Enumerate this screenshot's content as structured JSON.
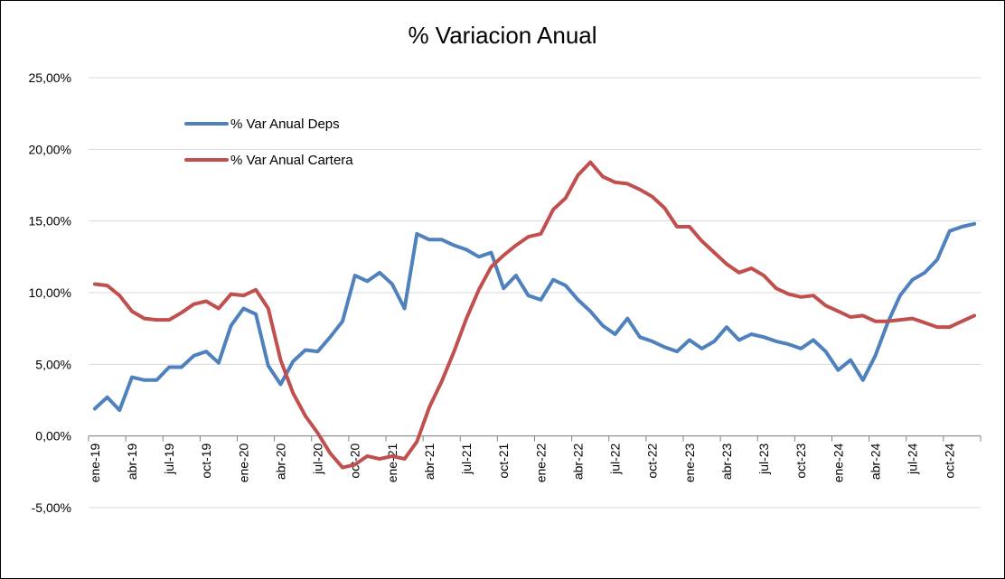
{
  "chart_data": {
    "type": "line",
    "title": "% Variacion Anual",
    "xlabel": "",
    "ylabel": "",
    "ylim": [
      -5,
      25
    ],
    "y_ticks": [
      "25,00%",
      "20,00%",
      "15,00%",
      "10,00%",
      "5,00%",
      "0,00%",
      "-5,00%"
    ],
    "y_tick_values": [
      25,
      20,
      15,
      10,
      5,
      0,
      -5
    ],
    "grid": "horizontal",
    "legend_position": "top-left",
    "x_labels": [
      "ene-19",
      "abr-19",
      "jul-19",
      "oct-19",
      "ene-20",
      "abr-20",
      "jul-20",
      "oct-20",
      "ene-21",
      "abr-21",
      "jul-21",
      "oct-21",
      "ene-22",
      "abr-22",
      "jul-22",
      "oct-22",
      "ene-23",
      "abr-23",
      "jul-23",
      "oct-23",
      "ene-24",
      "abr-24",
      "jul-24",
      "oct-24"
    ],
    "x": [
      "ene-19",
      "feb-19",
      "mar-19",
      "abr-19",
      "may-19",
      "jun-19",
      "jul-19",
      "ago-19",
      "sep-19",
      "oct-19",
      "nov-19",
      "dic-19",
      "ene-20",
      "feb-20",
      "mar-20",
      "abr-20",
      "may-20",
      "jun-20",
      "jul-20",
      "ago-20",
      "sep-20",
      "oct-20",
      "nov-20",
      "dic-20",
      "ene-21",
      "feb-21",
      "mar-21",
      "abr-21",
      "may-21",
      "jun-21",
      "jul-21",
      "ago-21",
      "sep-21",
      "oct-21",
      "nov-21",
      "dic-21",
      "ene-22",
      "feb-22",
      "mar-22",
      "abr-22",
      "may-22",
      "jun-22",
      "jul-22",
      "ago-22",
      "sep-22",
      "oct-22",
      "nov-22",
      "dic-22",
      "ene-23",
      "feb-23",
      "mar-23",
      "abr-23",
      "may-23",
      "jun-23",
      "jul-23",
      "ago-23",
      "sep-23",
      "oct-23",
      "nov-23",
      "dic-23",
      "ene-24",
      "feb-24",
      "mar-24",
      "abr-24",
      "may-24",
      "jun-24",
      "jul-24",
      "ago-24",
      "sep-24",
      "oct-24",
      "nov-24",
      "dic-24"
    ],
    "series": [
      {
        "name": "% Var Anual Deps",
        "color": "#4f81bd",
        "values": [
          1.9,
          2.7,
          1.8,
          4.1,
          3.9,
          3.9,
          4.8,
          4.8,
          5.6,
          5.9,
          5.1,
          7.7,
          8.9,
          8.5,
          4.9,
          3.6,
          5.2,
          6.0,
          5.9,
          6.9,
          8.0,
          11.2,
          10.8,
          11.4,
          10.6,
          8.9,
          14.1,
          13.7,
          13.7,
          13.3,
          13.0,
          12.5,
          12.8,
          10.3,
          11.2,
          9.8,
          9.5,
          10.9,
          10.5,
          9.5,
          8.7,
          7.7,
          7.1,
          8.2,
          6.9,
          6.6,
          6.2,
          5.9,
          6.7,
          6.1,
          6.6,
          7.6,
          6.7,
          7.1,
          6.9,
          6.6,
          6.4,
          6.1,
          6.7,
          5.9,
          4.6,
          5.3,
          3.9,
          5.6,
          7.9,
          9.8,
          10.9,
          11.4,
          12.3,
          14.3,
          14.6,
          14.8
        ]
      },
      {
        "name": "% Var Anual Cartera",
        "color": "#c0504d",
        "values": [
          10.6,
          10.5,
          9.8,
          8.7,
          8.2,
          8.1,
          8.1,
          8.6,
          9.2,
          9.4,
          8.9,
          9.9,
          9.8,
          10.2,
          8.9,
          5.3,
          3.0,
          1.4,
          0.2,
          -1.2,
          -2.2,
          -2.0,
          -1.4,
          -1.6,
          -1.4,
          -1.6,
          -0.4,
          2.0,
          3.8,
          5.9,
          8.2,
          10.2,
          11.8,
          12.6,
          13.3,
          13.9,
          14.1,
          15.8,
          16.6,
          18.2,
          19.1,
          18.1,
          17.7,
          17.6,
          17.2,
          16.7,
          15.9,
          14.6,
          14.6,
          13.6,
          12.8,
          12.0,
          11.4,
          11.7,
          11.2,
          10.3,
          9.9,
          9.7,
          9.8,
          9.1,
          8.7,
          8.3,
          8.4,
          8.0,
          8.0,
          8.1,
          8.2,
          7.9,
          7.6,
          7.6,
          8.0,
          8.4
        ]
      }
    ]
  }
}
